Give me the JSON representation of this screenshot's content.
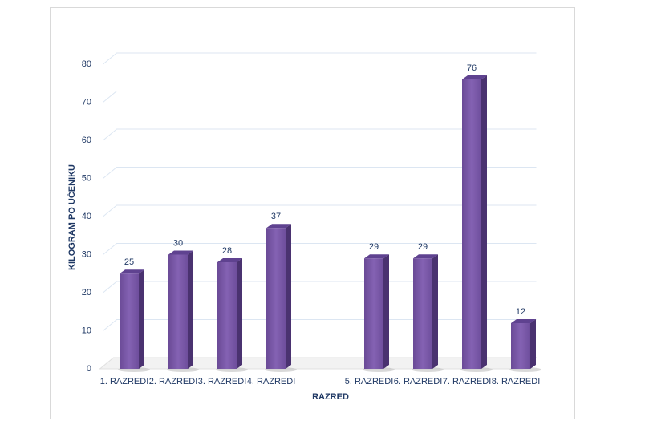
{
  "chart_data": {
    "type": "bar",
    "categories": [
      "1. RAZREDI",
      "2. RAZREDI",
      "3. RAZREDI",
      "4. RAZREDI",
      null,
      "5. RAZREDI",
      "6. RAZREDI",
      "7. RAZREDI",
      "8. RAZREDI"
    ],
    "values": [
      25,
      30,
      28,
      37,
      null,
      29,
      29,
      76,
      12
    ],
    "color": "#7b5aa6",
    "x_label": "RAZRED",
    "y_label": "KILOGRAM PO UČENIKU",
    "ylim": [
      0,
      80
    ],
    "yticks": [
      0,
      10,
      20,
      30,
      40,
      50,
      60,
      70,
      80
    ],
    "grid": true
  }
}
